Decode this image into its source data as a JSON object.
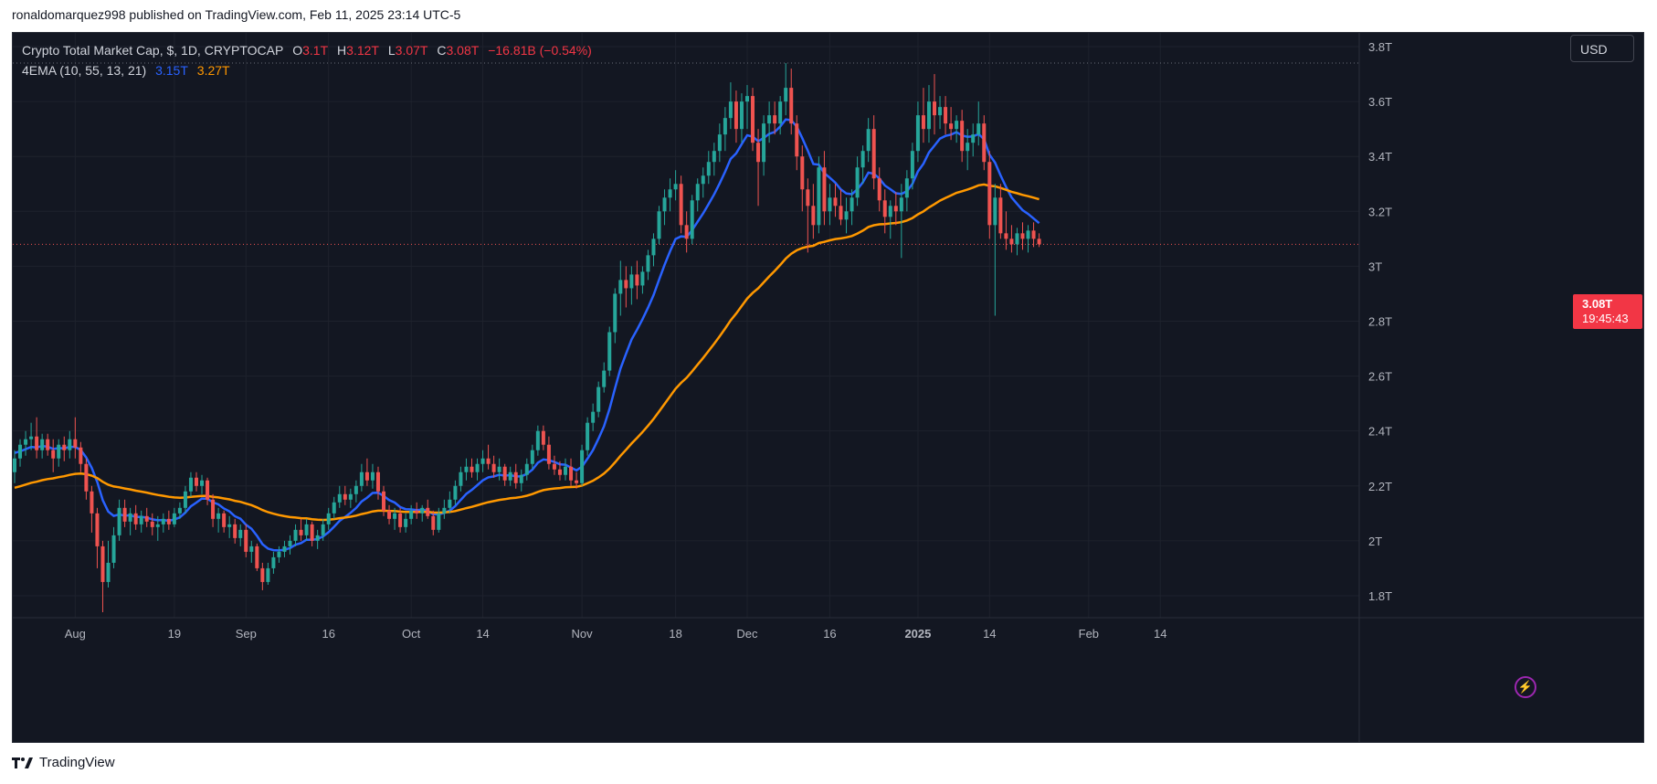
{
  "header": {
    "published_line": "ronaldomarquez998 published on TradingView.com, Feb 11, 2025 23:14 UTC-5"
  },
  "legend": {
    "symbol": "Crypto Total Market Cap, $, 1D, CRYPTOCAP",
    "o_label": "O",
    "o_value": "3.1T",
    "h_label": "H",
    "h_value": "3.12T",
    "l_label": "L",
    "l_value": "3.07T",
    "c_label": "C",
    "c_value": "3.08T",
    "change": "−16.81B (−0.54%)",
    "indicator": "4EMA (10, 55, 13, 21)",
    "ema_fast_value": "3.15T",
    "ema_slow_value": "3.27T"
  },
  "currency": "USD",
  "last_price": {
    "value": "3.08T",
    "countdown": "19:45:43"
  },
  "footer": {
    "brand": "TradingView"
  },
  "colors": {
    "background": "#131722",
    "grid": "#1e222d",
    "text": "#b2b5be",
    "up": "#26a69a",
    "down": "#ef5350",
    "ema_fast": "#2962ff",
    "ema_slow": "#ff9800",
    "price_tag": "#f23645"
  },
  "chart_data": {
    "type": "candlestick",
    "title": "Crypto Total Market Cap, $, 1D, CRYPTOCAP",
    "interval": "1D",
    "y_unit": "T USD",
    "ylim": [
      1.72,
      3.85
    ],
    "x_range": [
      "2024-07-21",
      "2025-02-16"
    ],
    "y_ticks": [
      {
        "value": 1.8,
        "label": "1.8T"
      },
      {
        "value": 2.0,
        "label": "2T"
      },
      {
        "value": 2.2,
        "label": "2.2T"
      },
      {
        "value": 2.4,
        "label": "2.4T"
      },
      {
        "value": 2.6,
        "label": "2.6T"
      },
      {
        "value": 2.8,
        "label": "2.8T"
      },
      {
        "value": 3.0,
        "label": "3T"
      },
      {
        "value": 3.2,
        "label": "3.2T"
      },
      {
        "value": 3.4,
        "label": "3.4T"
      },
      {
        "value": 3.6,
        "label": "3.6T"
      },
      {
        "value": 3.8,
        "label": "3.8T"
      }
    ],
    "x_ticks": [
      {
        "date": "2024-08-01",
        "label": "Aug"
      },
      {
        "date": "2024-08-19",
        "label": "19"
      },
      {
        "date": "2024-09-01",
        "label": "Sep"
      },
      {
        "date": "2024-09-16",
        "label": "16"
      },
      {
        "date": "2024-10-01",
        "label": "Oct"
      },
      {
        "date": "2024-10-14",
        "label": "14"
      },
      {
        "date": "2024-11-01",
        "label": "Nov"
      },
      {
        "date": "2024-11-18",
        "label": "18"
      },
      {
        "date": "2024-12-01",
        "label": "Dec"
      },
      {
        "date": "2024-12-16",
        "label": "16"
      },
      {
        "date": "2025-01-01",
        "label": "2025"
      },
      {
        "date": "2025-01-14",
        "label": "14"
      },
      {
        "date": "2025-02-01",
        "label": "Feb"
      },
      {
        "date": "2025-02-14",
        "label": "14"
      }
    ],
    "start_date": "2024-07-21",
    "ohlc": [
      [
        2.25,
        2.33,
        2.21,
        2.3
      ],
      [
        2.3,
        2.37,
        2.27,
        2.35
      ],
      [
        2.35,
        2.4,
        2.31,
        2.37
      ],
      [
        2.37,
        2.43,
        2.33,
        2.38
      ],
      [
        2.38,
        2.45,
        2.3,
        2.33
      ],
      [
        2.33,
        2.39,
        2.3,
        2.37
      ],
      [
        2.37,
        2.39,
        2.31,
        2.33
      ],
      [
        2.33,
        2.37,
        2.25,
        2.3
      ],
      [
        2.3,
        2.37,
        2.27,
        2.35
      ],
      [
        2.35,
        2.38,
        2.29,
        2.33
      ],
      [
        2.33,
        2.4,
        2.3,
        2.37
      ],
      [
        2.37,
        2.45,
        2.3,
        2.34
      ],
      [
        2.34,
        2.36,
        2.25,
        2.28
      ],
      [
        2.28,
        2.3,
        2.15,
        2.18
      ],
      [
        2.18,
        2.2,
        2.03,
        2.1
      ],
      [
        2.1,
        2.12,
        1.9,
        1.98
      ],
      [
        1.98,
        2.0,
        1.74,
        1.85
      ],
      [
        1.85,
        2.0,
        1.83,
        1.92
      ],
      [
        1.92,
        2.05,
        1.9,
        2.02
      ],
      [
        2.02,
        2.15,
        2.0,
        2.12
      ],
      [
        2.12,
        2.15,
        2.05,
        2.07
      ],
      [
        2.07,
        2.12,
        2.02,
        2.1
      ],
      [
        2.1,
        2.13,
        2.04,
        2.06
      ],
      [
        2.06,
        2.11,
        2.03,
        2.09
      ],
      [
        2.09,
        2.12,
        2.05,
        2.07
      ],
      [
        2.07,
        2.1,
        2.02,
        2.05
      ],
      [
        2.05,
        2.09,
        2.0,
        2.06
      ],
      [
        2.06,
        2.1,
        2.03,
        2.08
      ],
      [
        2.08,
        2.11,
        2.04,
        2.06
      ],
      [
        2.06,
        2.12,
        2.05,
        2.1
      ],
      [
        2.1,
        2.14,
        2.08,
        2.12
      ],
      [
        2.12,
        2.2,
        2.1,
        2.18
      ],
      [
        2.18,
        2.25,
        2.16,
        2.23
      ],
      [
        2.23,
        2.25,
        2.18,
        2.2
      ],
      [
        2.2,
        2.24,
        2.17,
        2.22
      ],
      [
        2.22,
        2.23,
        2.13,
        2.15
      ],
      [
        2.15,
        2.17,
        2.05,
        2.08
      ],
      [
        2.08,
        2.12,
        2.03,
        2.1
      ],
      [
        2.1,
        2.11,
        2.03,
        2.05
      ],
      [
        2.05,
        2.09,
        2.01,
        2.06
      ],
      [
        2.06,
        2.08,
        1.99,
        2.01
      ],
      [
        2.01,
        2.06,
        1.98,
        2.04
      ],
      [
        2.04,
        2.06,
        1.94,
        1.96
      ],
      [
        1.96,
        2.0,
        1.92,
        1.98
      ],
      [
        1.98,
        1.99,
        1.89,
        1.9
      ],
      [
        1.9,
        1.92,
        1.82,
        1.85
      ],
      [
        1.85,
        1.92,
        1.84,
        1.9
      ],
      [
        1.9,
        1.96,
        1.88,
        1.94
      ],
      [
        1.94,
        1.98,
        1.92,
        1.96
      ],
      [
        1.96,
        2.0,
        1.94,
        1.98
      ],
      [
        1.98,
        2.02,
        1.95,
        2.0
      ],
      [
        2.0,
        2.06,
        1.98,
        2.04
      ],
      [
        2.04,
        2.08,
        2.0,
        2.02
      ],
      [
        2.02,
        2.08,
        2.0,
        2.06
      ],
      [
        2.06,
        2.07,
        1.98,
        2.0
      ],
      [
        2.0,
        2.04,
        1.97,
        2.02
      ],
      [
        2.02,
        2.08,
        2.0,
        2.06
      ],
      [
        2.06,
        2.12,
        2.04,
        2.1
      ],
      [
        2.1,
        2.16,
        2.08,
        2.14
      ],
      [
        2.14,
        2.2,
        2.12,
        2.17
      ],
      [
        2.17,
        2.2,
        2.13,
        2.15
      ],
      [
        2.15,
        2.19,
        2.12,
        2.17
      ],
      [
        2.17,
        2.22,
        2.14,
        2.2
      ],
      [
        2.2,
        2.28,
        2.18,
        2.25
      ],
      [
        2.25,
        2.3,
        2.2,
        2.22
      ],
      [
        2.22,
        2.28,
        2.19,
        2.25
      ],
      [
        2.25,
        2.27,
        2.15,
        2.18
      ],
      [
        2.18,
        2.2,
        2.09,
        2.11
      ],
      [
        2.11,
        2.13,
        2.06,
        2.08
      ],
      [
        2.08,
        2.12,
        2.04,
        2.1
      ],
      [
        2.1,
        2.12,
        2.03,
        2.05
      ],
      [
        2.05,
        2.1,
        2.03,
        2.08
      ],
      [
        2.08,
        2.13,
        2.06,
        2.11
      ],
      [
        2.11,
        2.14,
        2.08,
        2.1
      ],
      [
        2.1,
        2.13,
        2.07,
        2.12
      ],
      [
        2.12,
        2.15,
        2.08,
        2.09
      ],
      [
        2.09,
        2.11,
        2.02,
        2.04
      ],
      [
        2.04,
        2.12,
        2.03,
        2.1
      ],
      [
        2.1,
        2.15,
        2.08,
        2.12
      ],
      [
        2.12,
        2.18,
        2.1,
        2.15
      ],
      [
        2.15,
        2.22,
        2.13,
        2.2
      ],
      [
        2.2,
        2.27,
        2.18,
        2.25
      ],
      [
        2.25,
        2.3,
        2.22,
        2.27
      ],
      [
        2.27,
        2.3,
        2.23,
        2.25
      ],
      [
        2.25,
        2.3,
        2.22,
        2.28
      ],
      [
        2.28,
        2.33,
        2.25,
        2.3
      ],
      [
        2.3,
        2.35,
        2.26,
        2.28
      ],
      [
        2.28,
        2.31,
        2.23,
        2.25
      ],
      [
        2.25,
        2.3,
        2.22,
        2.27
      ],
      [
        2.27,
        2.28,
        2.2,
        2.22
      ],
      [
        2.22,
        2.27,
        2.2,
        2.25
      ],
      [
        2.25,
        2.28,
        2.19,
        2.21
      ],
      [
        2.21,
        2.26,
        2.18,
        2.24
      ],
      [
        2.24,
        2.3,
        2.22,
        2.28
      ],
      [
        2.28,
        2.35,
        2.26,
        2.33
      ],
      [
        2.33,
        2.42,
        2.31,
        2.4
      ],
      [
        2.4,
        2.42,
        2.33,
        2.35
      ],
      [
        2.35,
        2.38,
        2.26,
        2.28
      ],
      [
        2.28,
        2.31,
        2.24,
        2.26
      ],
      [
        2.26,
        2.29,
        2.22,
        2.24
      ],
      [
        2.24,
        2.3,
        2.22,
        2.27
      ],
      [
        2.27,
        2.3,
        2.2,
        2.22
      ],
      [
        2.22,
        2.25,
        2.19,
        2.21
      ],
      [
        2.21,
        2.35,
        2.2,
        2.33
      ],
      [
        2.33,
        2.45,
        2.31,
        2.43
      ],
      [
        2.43,
        2.5,
        2.4,
        2.47
      ],
      [
        2.47,
        2.58,
        2.45,
        2.56
      ],
      [
        2.56,
        2.65,
        2.54,
        2.62
      ],
      [
        2.62,
        2.78,
        2.6,
        2.76
      ],
      [
        2.76,
        2.92,
        2.72,
        2.9
      ],
      [
        2.9,
        3.02,
        2.82,
        2.95
      ],
      [
        2.95,
        3.0,
        2.85,
        2.92
      ],
      [
        2.92,
        3.0,
        2.86,
        2.97
      ],
      [
        2.97,
        3.02,
        2.88,
        2.93
      ],
      [
        2.93,
        3.0,
        2.9,
        2.98
      ],
      [
        2.98,
        3.06,
        2.95,
        3.04
      ],
      [
        3.04,
        3.12,
        3.0,
        3.1
      ],
      [
        3.1,
        3.22,
        3.08,
        3.2
      ],
      [
        3.2,
        3.28,
        3.15,
        3.25
      ],
      [
        3.25,
        3.32,
        3.2,
        3.28
      ],
      [
        3.28,
        3.35,
        3.24,
        3.3
      ],
      [
        3.3,
        3.33,
        3.12,
        3.15
      ],
      [
        3.15,
        3.2,
        3.05,
        3.1
      ],
      [
        3.1,
        3.26,
        3.08,
        3.24
      ],
      [
        3.24,
        3.32,
        3.2,
        3.3
      ],
      [
        3.3,
        3.36,
        3.25,
        3.33
      ],
      [
        3.33,
        3.42,
        3.3,
        3.38
      ],
      [
        3.38,
        3.45,
        3.33,
        3.42
      ],
      [
        3.42,
        3.52,
        3.38,
        3.48
      ],
      [
        3.48,
        3.58,
        3.42,
        3.54
      ],
      [
        3.54,
        3.67,
        3.5,
        3.6
      ],
      [
        3.6,
        3.64,
        3.45,
        3.5
      ],
      [
        3.5,
        3.63,
        3.45,
        3.6
      ],
      [
        3.6,
        3.66,
        3.5,
        3.62
      ],
      [
        3.62,
        3.65,
        3.42,
        3.45
      ],
      [
        3.45,
        3.5,
        3.22,
        3.38
      ],
      [
        3.38,
        3.55,
        3.33,
        3.52
      ],
      [
        3.52,
        3.6,
        3.45,
        3.55
      ],
      [
        3.55,
        3.6,
        3.48,
        3.52
      ],
      [
        3.52,
        3.62,
        3.48,
        3.6
      ],
      [
        3.6,
        3.74,
        3.55,
        3.65
      ],
      [
        3.65,
        3.72,
        3.48,
        3.52
      ],
      [
        3.52,
        3.55,
        3.35,
        3.4
      ],
      [
        3.4,
        3.44,
        3.2,
        3.28
      ],
      [
        3.28,
        3.32,
        3.05,
        3.22
      ],
      [
        3.22,
        3.3,
        3.1,
        3.15
      ],
      [
        3.15,
        3.4,
        3.12,
        3.36
      ],
      [
        3.36,
        3.42,
        3.15,
        3.2
      ],
      [
        3.2,
        3.3,
        3.15,
        3.25
      ],
      [
        3.25,
        3.3,
        3.18,
        3.22
      ],
      [
        3.22,
        3.28,
        3.15,
        3.17
      ],
      [
        3.17,
        3.25,
        3.12,
        3.2
      ],
      [
        3.2,
        3.28,
        3.15,
        3.25
      ],
      [
        3.25,
        3.4,
        3.22,
        3.36
      ],
      [
        3.36,
        3.44,
        3.3,
        3.42
      ],
      [
        3.42,
        3.54,
        3.38,
        3.5
      ],
      [
        3.5,
        3.55,
        3.28,
        3.32
      ],
      [
        3.32,
        3.36,
        3.2,
        3.24
      ],
      [
        3.24,
        3.28,
        3.12,
        3.18
      ],
      [
        3.18,
        3.24,
        3.1,
        3.22
      ],
      [
        3.22,
        3.27,
        3.15,
        3.2
      ],
      [
        3.2,
        3.3,
        3.03,
        3.25
      ],
      [
        3.25,
        3.35,
        3.2,
        3.32
      ],
      [
        3.32,
        3.45,
        3.28,
        3.42
      ],
      [
        3.42,
        3.6,
        3.38,
        3.55
      ],
      [
        3.55,
        3.65,
        3.45,
        3.5
      ],
      [
        3.5,
        3.66,
        3.45,
        3.6
      ],
      [
        3.6,
        3.7,
        3.48,
        3.55
      ],
      [
        3.55,
        3.62,
        3.5,
        3.58
      ],
      [
        3.58,
        3.62,
        3.48,
        3.52
      ],
      [
        3.52,
        3.58,
        3.46,
        3.5
      ],
      [
        3.5,
        3.55,
        3.45,
        3.53
      ],
      [
        3.53,
        3.57,
        3.38,
        3.42
      ],
      [
        3.42,
        3.5,
        3.35,
        3.45
      ],
      [
        3.45,
        3.52,
        3.4,
        3.48
      ],
      [
        3.48,
        3.6,
        3.44,
        3.52
      ],
      [
        3.52,
        3.55,
        3.35,
        3.38
      ],
      [
        3.38,
        3.42,
        3.1,
        3.15
      ],
      [
        3.15,
        3.3,
        2.82,
        3.25
      ],
      [
        3.25,
        3.3,
        3.1,
        3.12
      ],
      [
        3.12,
        3.2,
        3.06,
        3.1
      ],
      [
        3.1,
        3.15,
        3.05,
        3.08
      ],
      [
        3.08,
        3.14,
        3.04,
        3.12
      ],
      [
        3.12,
        3.16,
        3.06,
        3.1
      ],
      [
        3.1,
        3.15,
        3.05,
        3.13
      ],
      [
        3.13,
        3.16,
        3.07,
        3.1
      ],
      [
        3.1,
        3.12,
        3.07,
        3.08
      ]
    ],
    "series": [
      {
        "name": "4EMA (10, 55, 13, 21) fast",
        "period": 10,
        "last": 3.15
      },
      {
        "name": "4EMA (10, 55, 13, 21) slow",
        "period": 55,
        "last": 3.27
      }
    ],
    "last_close": 3.08,
    "period_high": 3.74,
    "grid": true
  }
}
